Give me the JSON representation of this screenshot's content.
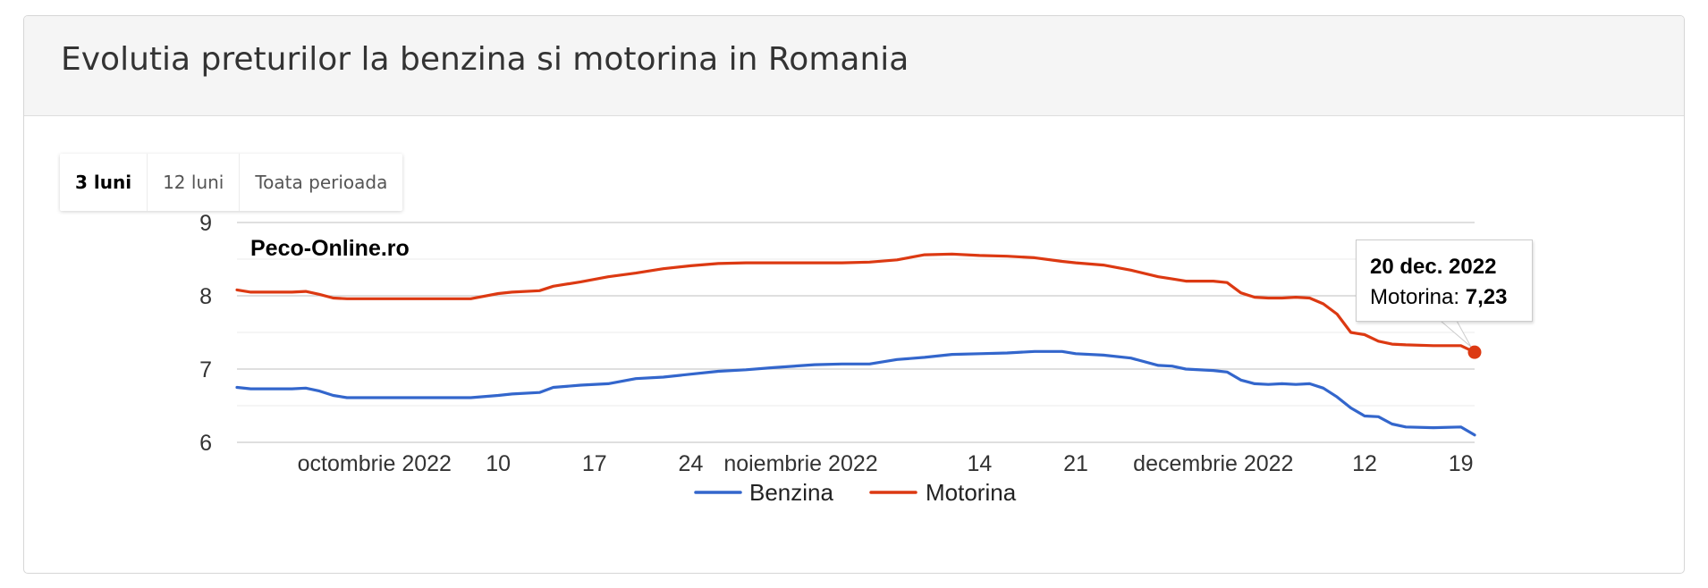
{
  "header": {
    "title": "Evolutia preturilor la benzina si motorina in Romania"
  },
  "range_buttons": [
    {
      "label": "3 luni",
      "active": true
    },
    {
      "label": "12 luni",
      "active": false
    },
    {
      "label": "Toata perioada",
      "active": false
    }
  ],
  "watermark": "Peco-Online.ro",
  "tooltip": {
    "date": "20 dec. 2022",
    "series": "Motorina",
    "separator": ": ",
    "value": "7,23"
  },
  "colors": {
    "benzina": "#3366cc",
    "motorina": "#dc3912",
    "gridline": "#cccccc",
    "minor_gridline": "#ebebeb"
  },
  "chart_data": {
    "type": "line",
    "title": "",
    "xlabel": "",
    "ylabel": "",
    "x_range": [
      "2022-09-21",
      "2022-12-20"
    ],
    "ylim": [
      6,
      9
    ],
    "y_ticks": [
      {
        "value": 6,
        "label": "6"
      },
      {
        "value": 7,
        "label": "7"
      },
      {
        "value": 8,
        "label": "8"
      },
      {
        "value": 9,
        "label": "9"
      }
    ],
    "y_minor_ticks": [
      6.5,
      7.5,
      8.5
    ],
    "x_ticks": [
      {
        "date": "2022-10-01",
        "label": "octombrie 2022"
      },
      {
        "date": "2022-10-10",
        "label": "10"
      },
      {
        "date": "2022-10-17",
        "label": "17"
      },
      {
        "date": "2022-10-24",
        "label": "24"
      },
      {
        "date": "2022-11-01",
        "label": "noiembrie 2022"
      },
      {
        "date": "2022-11-14",
        "label": "14"
      },
      {
        "date": "2022-11-21",
        "label": "21"
      },
      {
        "date": "2022-12-01",
        "label": "decembrie 2022"
      },
      {
        "date": "2022-12-12",
        "label": "12"
      },
      {
        "date": "2022-12-19",
        "label": "19"
      }
    ],
    "grid": true,
    "legend_position": "bottom",
    "highlighted_point": {
      "series": "Motorina",
      "date": "2022-12-20",
      "value": 7.23
    },
    "series": [
      {
        "name": "Benzina",
        "color": "#3366cc",
        "points": [
          [
            "2022-09-21",
            6.75
          ],
          [
            "2022-09-22",
            6.73
          ],
          [
            "2022-09-25",
            6.73
          ],
          [
            "2022-09-26",
            6.74
          ],
          [
            "2022-09-27",
            6.7
          ],
          [
            "2022-09-28",
            6.64
          ],
          [
            "2022-09-29",
            6.61
          ],
          [
            "2022-10-01",
            6.61
          ],
          [
            "2022-10-03",
            6.61
          ],
          [
            "2022-10-08",
            6.61
          ],
          [
            "2022-10-10",
            6.64
          ],
          [
            "2022-10-11",
            6.66
          ],
          [
            "2022-10-13",
            6.68
          ],
          [
            "2022-10-14",
            6.75
          ],
          [
            "2022-10-16",
            6.78
          ],
          [
            "2022-10-18",
            6.8
          ],
          [
            "2022-10-20",
            6.87
          ],
          [
            "2022-10-22",
            6.89
          ],
          [
            "2022-10-24",
            6.93
          ],
          [
            "2022-10-26",
            6.97
          ],
          [
            "2022-10-28",
            6.99
          ],
          [
            "2022-10-30",
            7.02
          ],
          [
            "2022-11-02",
            7.06
          ],
          [
            "2022-11-04",
            7.07
          ],
          [
            "2022-11-06",
            7.07
          ],
          [
            "2022-11-08",
            7.13
          ],
          [
            "2022-11-10",
            7.16
          ],
          [
            "2022-11-12",
            7.2
          ],
          [
            "2022-11-14",
            7.21
          ],
          [
            "2022-11-16",
            7.22
          ],
          [
            "2022-11-18",
            7.24
          ],
          [
            "2022-11-20",
            7.24
          ],
          [
            "2022-11-21",
            7.21
          ],
          [
            "2022-11-23",
            7.19
          ],
          [
            "2022-11-25",
            7.15
          ],
          [
            "2022-11-27",
            7.05
          ],
          [
            "2022-11-28",
            7.04
          ],
          [
            "2022-11-29",
            7.0
          ],
          [
            "2022-12-01",
            6.98
          ],
          [
            "2022-12-02",
            6.96
          ],
          [
            "2022-12-03",
            6.85
          ],
          [
            "2022-12-04",
            6.8
          ],
          [
            "2022-12-05",
            6.79
          ],
          [
            "2022-12-06",
            6.8
          ],
          [
            "2022-12-07",
            6.79
          ],
          [
            "2022-12-08",
            6.8
          ],
          [
            "2022-12-09",
            6.74
          ],
          [
            "2022-12-10",
            6.62
          ],
          [
            "2022-12-11",
            6.47
          ],
          [
            "2022-12-12",
            6.36
          ],
          [
            "2022-12-13",
            6.35
          ],
          [
            "2022-12-14",
            6.25
          ],
          [
            "2022-12-15",
            6.21
          ],
          [
            "2022-12-17",
            6.2
          ],
          [
            "2022-12-19",
            6.21
          ],
          [
            "2022-12-20",
            6.1
          ]
        ]
      },
      {
        "name": "Motorina",
        "color": "#dc3912",
        "points": [
          [
            "2022-09-21",
            8.08
          ],
          [
            "2022-09-22",
            8.05
          ],
          [
            "2022-09-25",
            8.05
          ],
          [
            "2022-09-26",
            8.06
          ],
          [
            "2022-09-27",
            8.02
          ],
          [
            "2022-09-28",
            7.97
          ],
          [
            "2022-09-29",
            7.96
          ],
          [
            "2022-10-01",
            7.96
          ],
          [
            "2022-10-03",
            7.96
          ],
          [
            "2022-10-08",
            7.96
          ],
          [
            "2022-10-10",
            8.03
          ],
          [
            "2022-10-11",
            8.05
          ],
          [
            "2022-10-13",
            8.07
          ],
          [
            "2022-10-14",
            8.13
          ],
          [
            "2022-10-16",
            8.19
          ],
          [
            "2022-10-18",
            8.26
          ],
          [
            "2022-10-20",
            8.31
          ],
          [
            "2022-10-22",
            8.37
          ],
          [
            "2022-10-24",
            8.41
          ],
          [
            "2022-10-26",
            8.44
          ],
          [
            "2022-10-28",
            8.45
          ],
          [
            "2022-10-30",
            8.45
          ],
          [
            "2022-11-02",
            8.45
          ],
          [
            "2022-11-04",
            8.45
          ],
          [
            "2022-11-06",
            8.46
          ],
          [
            "2022-11-08",
            8.49
          ],
          [
            "2022-11-10",
            8.56
          ],
          [
            "2022-11-12",
            8.57
          ],
          [
            "2022-11-14",
            8.55
          ],
          [
            "2022-11-16",
            8.54
          ],
          [
            "2022-11-18",
            8.52
          ],
          [
            "2022-11-20",
            8.47
          ],
          [
            "2022-11-21",
            8.45
          ],
          [
            "2022-11-23",
            8.42
          ],
          [
            "2022-11-25",
            8.35
          ],
          [
            "2022-11-27",
            8.26
          ],
          [
            "2022-11-28",
            8.23
          ],
          [
            "2022-11-29",
            8.2
          ],
          [
            "2022-12-01",
            8.2
          ],
          [
            "2022-12-02",
            8.18
          ],
          [
            "2022-12-03",
            8.04
          ],
          [
            "2022-12-04",
            7.98
          ],
          [
            "2022-12-05",
            7.97
          ],
          [
            "2022-12-06",
            7.97
          ],
          [
            "2022-12-07",
            7.98
          ],
          [
            "2022-12-08",
            7.97
          ],
          [
            "2022-12-09",
            7.89
          ],
          [
            "2022-12-10",
            7.75
          ],
          [
            "2022-12-11",
            7.5
          ],
          [
            "2022-12-12",
            7.47
          ],
          [
            "2022-12-13",
            7.38
          ],
          [
            "2022-12-14",
            7.34
          ],
          [
            "2022-12-15",
            7.33
          ],
          [
            "2022-12-17",
            7.32
          ],
          [
            "2022-12-19",
            7.32
          ],
          [
            "2022-12-20",
            7.23
          ]
        ]
      }
    ]
  }
}
